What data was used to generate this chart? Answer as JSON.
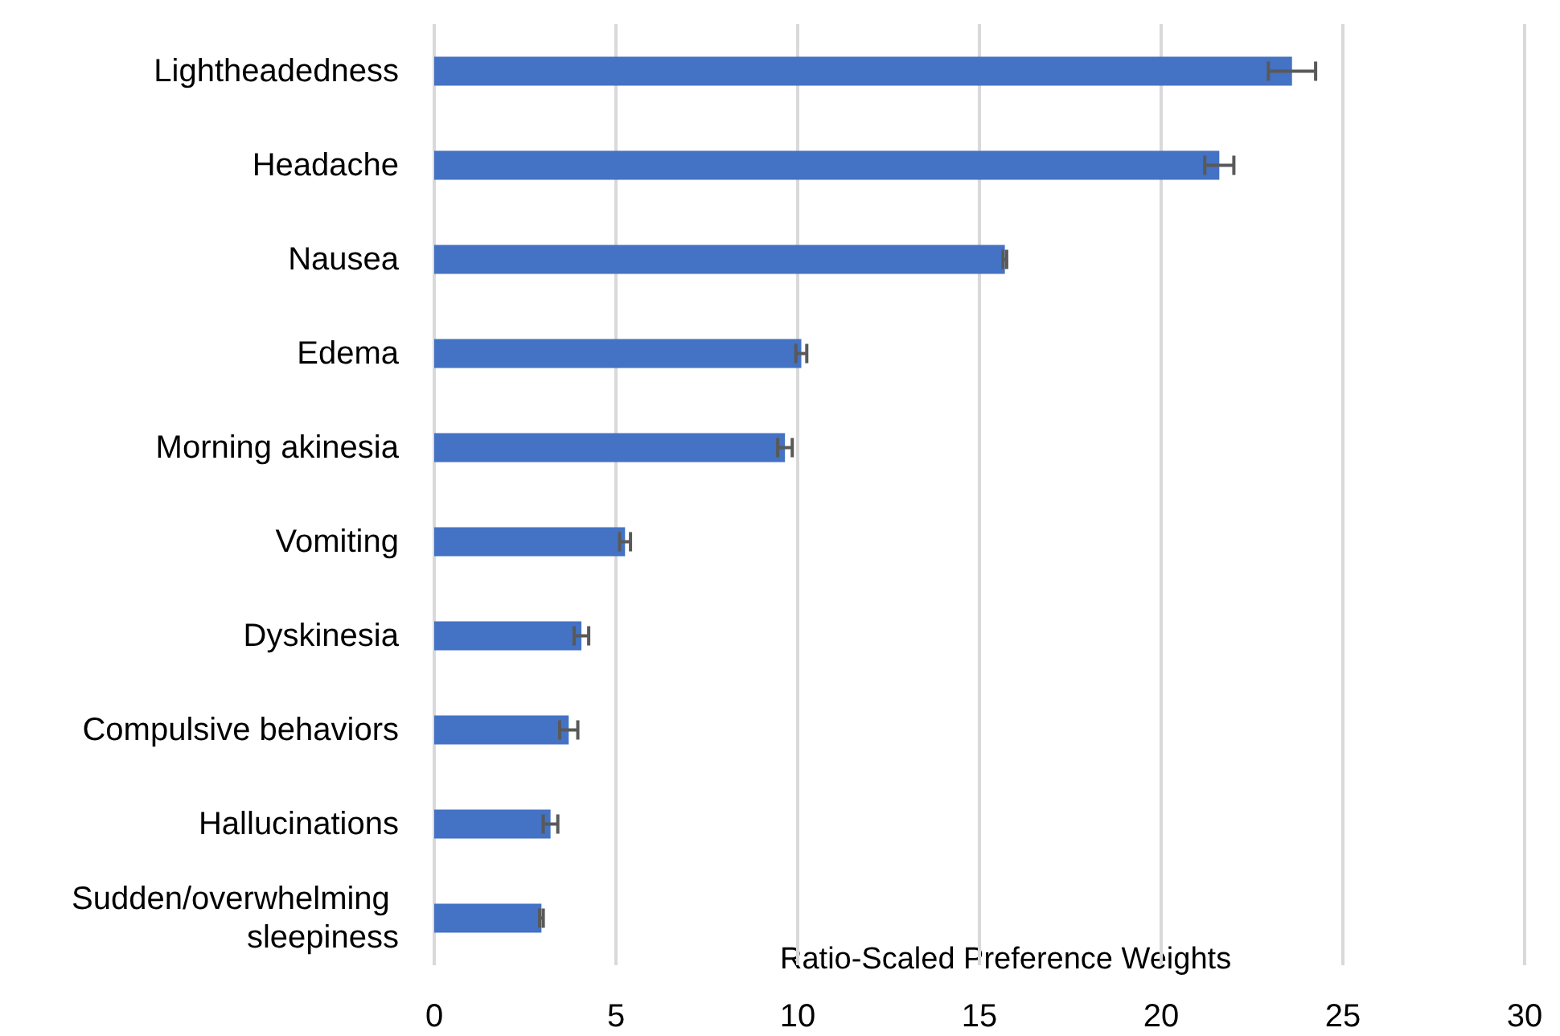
{
  "chart_data": {
    "type": "bar",
    "orientation": "horizontal",
    "xlabel": "Ratio-Scaled Preference Weights",
    "categories": [
      "Lightheadedness",
      "Headache",
      "Nausea",
      "Edema",
      "Morning akinesia",
      "Vomiting",
      "Dyskinesia",
      "Compulsive behaviors",
      "Hallucinations",
      "Sudden/overwhelming sleepiness"
    ],
    "values": [
      23.6,
      21.6,
      15.7,
      10.1,
      9.65,
      5.25,
      4.05,
      3.7,
      3.2,
      2.95
    ],
    "errors": [
      0.65,
      0.4,
      0.05,
      0.15,
      0.2,
      0.15,
      0.2,
      0.25,
      0.2,
      0.05
    ],
    "color": "#4472c4",
    "xlim": [
      0,
      30
    ],
    "xticks": [
      0,
      5,
      10,
      15,
      20,
      25,
      30
    ],
    "grid": "x"
  }
}
